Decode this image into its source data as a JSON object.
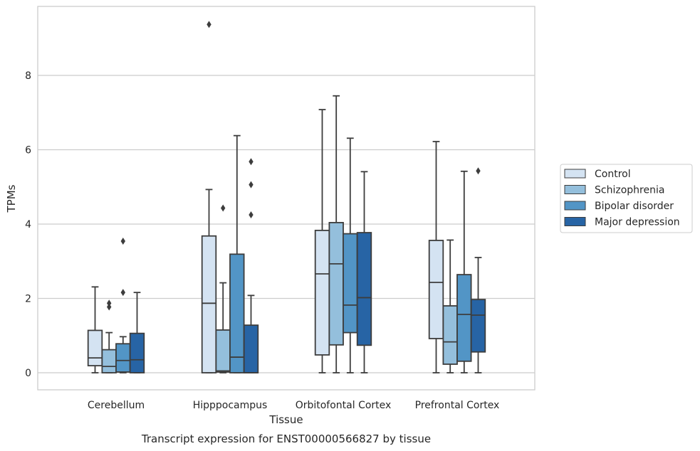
{
  "chart_data": {
    "type": "boxplot",
    "title": "Transcript expression for ENST00000566827 by tissue",
    "xlabel": "Tissue",
    "ylabel": "TPMs",
    "categories": [
      "Cerebellum",
      "Hipppocampus",
      "Orbitofontal Cortex",
      "Prefrontal Cortex"
    ],
    "ylim": [
      -0.45,
      9.9
    ],
    "yticks": [
      0,
      2,
      4,
      6,
      8
    ],
    "grid": true,
    "legend_position": "right",
    "series": [
      {
        "name": "Control",
        "color": "#d4e3f2",
        "boxes": [
          {
            "whislo": 0.0,
            "q1": 0.19,
            "med": 0.4,
            "q3": 1.14,
            "whishi": 2.31,
            "fliers": []
          },
          {
            "whislo": 0.0,
            "q1": 0.0,
            "med": 1.87,
            "q3": 3.68,
            "whishi": 4.93,
            "fliers": [
              9.37
            ]
          },
          {
            "whislo": 0.0,
            "q1": 0.48,
            "med": 2.66,
            "q3": 3.83,
            "whishi": 7.08,
            "fliers": []
          },
          {
            "whislo": 0.0,
            "q1": 0.92,
            "med": 2.43,
            "q3": 3.56,
            "whishi": 6.22,
            "fliers": []
          }
        ]
      },
      {
        "name": "Schizophrenia",
        "color": "#94bfdc",
        "boxes": [
          {
            "whislo": 0.0,
            "q1": 0.0,
            "med": 0.17,
            "q3": 0.62,
            "whishi": 1.08,
            "fliers": [
              1.77,
              1.87
            ]
          },
          {
            "whislo": 0.0,
            "q1": 0.02,
            "med": 0.05,
            "q3": 1.15,
            "whishi": 2.42,
            "fliers": [
              4.43
            ]
          },
          {
            "whislo": 0.0,
            "q1": 0.75,
            "med": 2.93,
            "q3": 4.04,
            "whishi": 7.45,
            "fliers": []
          },
          {
            "whislo": 0.0,
            "q1": 0.23,
            "med": 0.83,
            "q3": 1.8,
            "whishi": 3.57,
            "fliers": []
          }
        ]
      },
      {
        "name": "Bipolar disorder",
        "color": "#5295c6",
        "boxes": [
          {
            "whislo": 0.0,
            "q1": 0.02,
            "med": 0.33,
            "q3": 0.78,
            "whishi": 0.97,
            "fliers": [
              2.16,
              3.54
            ]
          },
          {
            "whislo": 0.0,
            "q1": 0.0,
            "med": 0.42,
            "q3": 3.19,
            "whishi": 6.38,
            "fliers": []
          },
          {
            "whislo": 0.0,
            "q1": 1.08,
            "med": 1.82,
            "q3": 3.74,
            "whishi": 6.31,
            "fliers": []
          },
          {
            "whislo": 0.0,
            "q1": 0.31,
            "med": 1.57,
            "q3": 2.64,
            "whishi": 5.42,
            "fliers": []
          }
        ]
      },
      {
        "name": "Major depression",
        "color": "#2764a5",
        "boxes": [
          {
            "whislo": 0.0,
            "q1": 0.0,
            "med": 0.35,
            "q3": 1.06,
            "whishi": 2.16,
            "fliers": []
          },
          {
            "whislo": 0.0,
            "q1": 0.0,
            "med": 0.0,
            "q3": 1.28,
            "whishi": 2.08,
            "fliers": [
              4.25,
              5.06,
              5.68
            ]
          },
          {
            "whislo": 0.0,
            "q1": 0.74,
            "med": 2.02,
            "q3": 3.77,
            "whishi": 5.41,
            "fliers": []
          },
          {
            "whislo": 0.0,
            "q1": 0.56,
            "med": 1.55,
            "q3": 1.97,
            "whishi": 3.1,
            "fliers": [
              5.43
            ]
          }
        ]
      }
    ]
  }
}
